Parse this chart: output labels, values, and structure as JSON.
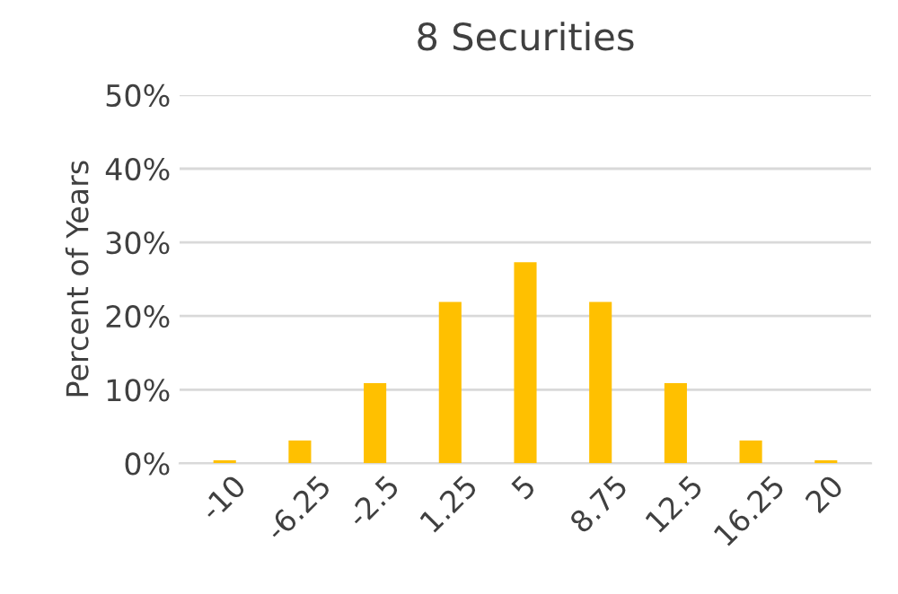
{
  "chart_data": {
    "type": "bar",
    "title": "8 Securities",
    "ylabel": "Percent of Years",
    "categories": [
      "-10",
      "-6.25",
      "-2.5",
      "1.25",
      "5",
      "8.75",
      "12.5",
      "16.25",
      "20"
    ],
    "values": [
      0.4,
      3.1,
      10.9,
      21.9,
      27.3,
      21.9,
      10.9,
      3.1,
      0.4
    ],
    "color": "#ffc000",
    "ylim": [
      0,
      50
    ],
    "yticks": [
      {
        "value": 0,
        "label": "0%"
      },
      {
        "value": 10,
        "label": "10%"
      },
      {
        "value": 20,
        "label": "20%"
      },
      {
        "value": 30,
        "label": "30%"
      },
      {
        "value": 40,
        "label": "40%"
      },
      {
        "value": 50,
        "label": "50%"
      }
    ],
    "grid": "y"
  }
}
